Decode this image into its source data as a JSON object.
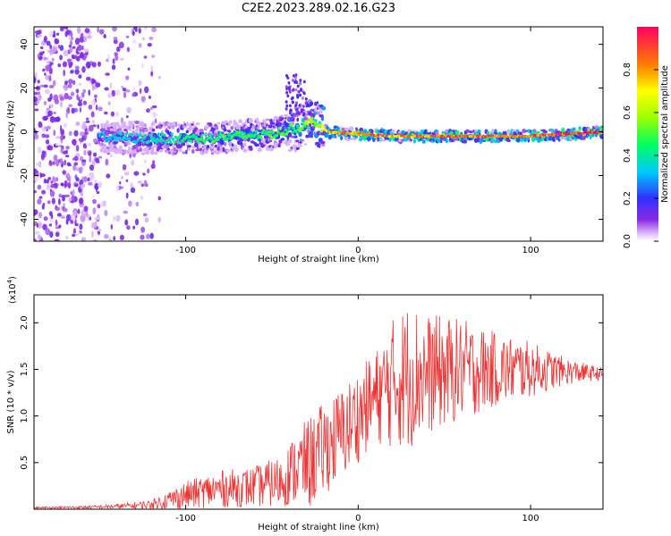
{
  "chart_data": [
    {
      "type": "heatmap",
      "title": "C2E2.2023.289.02.16.G23",
      "xlabel": "Height of straight line (km)",
      "ylabel": "Frequency (Hz)",
      "xlim": [
        -188,
        142
      ],
      "ylim": [
        -50,
        48
      ],
      "xticks": [
        -100,
        0,
        100
      ],
      "yticks": [
        -40,
        -20,
        0,
        20,
        40
      ],
      "ridge": {
        "description_x": [
          -150,
          -130,
          -110,
          -90,
          -70,
          -50,
          -35,
          -25,
          -18,
          0,
          20,
          50,
          80,
          100,
          120,
          142
        ],
        "description_freq": [
          -2,
          -3,
          -3,
          -3,
          -2,
          -1,
          2,
          5,
          0,
          -1,
          -2,
          -2,
          -2,
          -2,
          -1,
          0
        ],
        "amplitude": [
          0.3,
          0.35,
          0.4,
          0.45,
          0.45,
          0.45,
          0.5,
          0.55,
          0.75,
          0.85,
          0.8,
          0.85,
          0.85,
          0.85,
          0.9,
          0.95
        ]
      },
      "colorbar": {
        "label": "Normalized spectral amplitude",
        "range": [
          0,
          1
        ],
        "ticks": [
          "0.0",
          "0.2",
          "0.4",
          "0.6",
          "0.8"
        ],
        "tick_values": [
          0.0,
          0.2,
          0.4,
          0.6,
          0.8
        ]
      }
    },
    {
      "type": "line",
      "xlabel": "Height of straight line (km)",
      "ylabel": "SNR (10 * v/v)",
      "exponent_label": "(x10",
      "exponent_sup": "4",
      "exponent_close": ")",
      "xlim": [
        -188,
        142
      ],
      "ylim": [
        0,
        23000
      ],
      "xticks": [
        -100,
        0,
        100
      ],
      "yticks": [
        "0.5",
        "1.0",
        "1.5",
        "2.0"
      ],
      "ytick_values": [
        5000,
        10000,
        15000,
        20000
      ],
      "series": [
        {
          "name": "SNR",
          "color": "#ee3333",
          "envelope_x": [
            -188,
            -160,
            -140,
            -120,
            -100,
            -80,
            -60,
            -45,
            -35,
            -28,
            -20,
            -10,
            0,
            10,
            20,
            30,
            40,
            60,
            80,
            100,
            120,
            142
          ],
          "envelope_mean": [
            150,
            200,
            300,
            500,
            1500,
            2200,
            2400,
            3000,
            4500,
            5000,
            6500,
            8000,
            10000,
            12000,
            13500,
            14500,
            14500,
            15000,
            15000,
            15000,
            14800,
            14500
          ],
          "envelope_spread": [
            100,
            150,
            250,
            500,
            1500,
            2000,
            2200,
            2800,
            4000,
            5000,
            5000,
            5000,
            5000,
            5000,
            7000,
            8000,
            6500,
            5500,
            4000,
            3000,
            1500,
            600
          ]
        }
      ]
    }
  ],
  "colors": {
    "line": "#ee3333",
    "axis": "#000000"
  }
}
